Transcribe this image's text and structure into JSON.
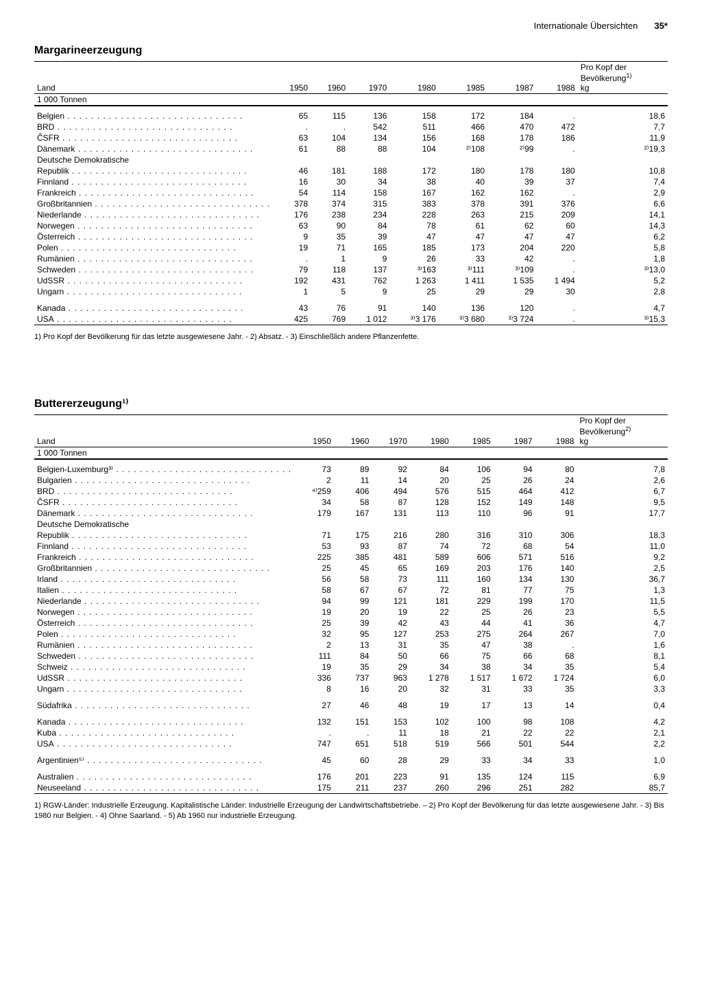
{
  "page_header": {
    "section": "Internationale Übersichten",
    "number": "35*"
  },
  "table1": {
    "title": "Margarineerzeugung",
    "columns": [
      "Land",
      "1950",
      "1960",
      "1970",
      "1980",
      "1985",
      "1987",
      "1988",
      "Pro Kopf der Bevölkerung¹⁾ kg"
    ],
    "unit": "1 000 Tonnen",
    "groups": [
      {
        "rows": [
          {
            "c": "Belgien",
            "v": [
              "65",
              "115",
              "136",
              "158",
              "172",
              "184",
              ".",
              "18,6"
            ]
          },
          {
            "c": "BRD",
            "v": [
              ".",
              ".",
              "542",
              "511",
              "466",
              "470",
              "472",
              "7,7"
            ]
          },
          {
            "c": "ČSFR",
            "v": [
              "63",
              "104",
              "134",
              "156",
              "168",
              "178",
              "186",
              "11,9"
            ]
          },
          {
            "c": "Dänemark",
            "v": [
              "61",
              "88",
              "88",
              "104",
              "²⁾108",
              "²⁾99",
              ".",
              "²⁾19,3"
            ]
          },
          {
            "c": "Deutsche Demokratische",
            "v": [
              "",
              "",
              "",
              "",
              "",
              "",
              "",
              ""
            ],
            "noell": true
          },
          {
            "c": "  Republik",
            "v": [
              "46",
              "181",
              "188",
              "172",
              "180",
              "178",
              "180",
              "10,8"
            ]
          },
          {
            "c": "Finnland",
            "v": [
              "16",
              "30",
              "34",
              "38",
              "40",
              "39",
              "37",
              "7,4"
            ]
          },
          {
            "c": "Frankreich",
            "v": [
              "54",
              "114",
              "158",
              "167",
              "162",
              "162",
              ".",
              "2,9"
            ]
          },
          {
            "c": "Großbritannien",
            "v": [
              "378",
              "374",
              "315",
              "383",
              "378",
              "391",
              "376",
              "6,6"
            ]
          },
          {
            "c": "Niederlande",
            "v": [
              "176",
              "238",
              "234",
              "228",
              "263",
              "215",
              "209",
              "14,1"
            ]
          },
          {
            "c": "Norwegen",
            "v": [
              "63",
              "90",
              "84",
              "78",
              "61",
              "62",
              "60",
              "14,3"
            ]
          },
          {
            "c": "Österreich",
            "v": [
              "9",
              "35",
              "39",
              "47",
              "47",
              "47",
              "47",
              "6,2"
            ]
          },
          {
            "c": "Polen",
            "v": [
              "19",
              "71",
              "165",
              "185",
              "173",
              "204",
              "220",
              "5,8"
            ]
          },
          {
            "c": "Rumänien",
            "v": [
              ".",
              "1",
              "9",
              "26",
              "33",
              "42",
              ".",
              "1,8"
            ]
          },
          {
            "c": "Schweden",
            "v": [
              "79",
              "118",
              "137",
              "³⁾163",
              "³⁾111",
              "³⁾109",
              ".",
              "³⁾13,0"
            ]
          },
          {
            "c": "UdSSR",
            "v": [
              "192",
              "431",
              "762",
              "1 263",
              "1 411",
              "1 535",
              "1 494",
              "5,2"
            ]
          },
          {
            "c": "Ungarn",
            "v": [
              "1",
              "5",
              "9",
              "25",
              "29",
              "29",
              "30",
              "2,8"
            ]
          }
        ]
      },
      {
        "rows": [
          {
            "c": "Kanada",
            "v": [
              "43",
              "76",
              "91",
              "140",
              "136",
              "120",
              ".",
              "4,7"
            ]
          },
          {
            "c": "USA",
            "v": [
              "425",
              "769",
              "1 012",
              "³⁾3 176",
              "³⁾3 680",
              "³⁾3 724",
              ".",
              "³⁾15,3"
            ]
          }
        ]
      }
    ],
    "footnote": "1) Pro Kopf der Bevölkerung für das letzte ausgewiesene Jahr. - 2) Absatz. - 3) Einschließlich andere Pflanzenfette."
  },
  "table2": {
    "title": "Buttererzeugung¹⁾",
    "columns": [
      "Land",
      "1950",
      "1960",
      "1970",
      "1980",
      "1985",
      "1987",
      "1988",
      "Pro Kopf der Bevölkerung²⁾ kg"
    ],
    "unit": "1 000 Tonnen",
    "groups": [
      {
        "rows": [
          {
            "c": "Belgien-Luxemburg³⁾",
            "v": [
              "73",
              "89",
              "92",
              "84",
              "106",
              "94",
              "80",
              "7,8"
            ]
          },
          {
            "c": "Bulgarien",
            "v": [
              "2",
              "11",
              "14",
              "20",
              "25",
              "26",
              "24",
              "2,6"
            ]
          },
          {
            "c": "BRD",
            "v": [
              "⁴⁾259",
              "406",
              "494",
              "576",
              "515",
              "464",
              "412",
              "6,7"
            ]
          },
          {
            "c": "ČSFR",
            "v": [
              "34",
              "58",
              "87",
              "128",
              "152",
              "149",
              "148",
              "9,5"
            ]
          },
          {
            "c": "Dänemark",
            "v": [
              "179",
              "167",
              "131",
              "113",
              "110",
              "96",
              "91",
              "17,7"
            ]
          },
          {
            "c": "Deutsche Demokratische",
            "v": [
              "",
              "",
              "",
              "",
              "",
              "",
              "",
              ""
            ],
            "noell": true
          },
          {
            "c": "  Republik",
            "v": [
              "71",
              "175",
              "216",
              "280",
              "316",
              "310",
              "306",
              "18,3"
            ]
          },
          {
            "c": "Finnland",
            "v": [
              "53",
              "93",
              "87",
              "74",
              "72",
              "68",
              "54",
              "11,0"
            ]
          },
          {
            "c": "Frankreich",
            "v": [
              "225",
              "385",
              "481",
              "589",
              "606",
              "571",
              "516",
              "9,2"
            ]
          },
          {
            "c": "Großbritannien",
            "v": [
              "25",
              "45",
              "65",
              "169",
              "203",
              "176",
              "140",
              "2,5"
            ]
          },
          {
            "c": "Irland",
            "v": [
              "56",
              "58",
              "73",
              "111",
              "160",
              "134",
              "130",
              "36,7"
            ]
          },
          {
            "c": "Italien",
            "v": [
              "58",
              "67",
              "67",
              "72",
              "81",
              "77",
              "75",
              "1,3"
            ]
          },
          {
            "c": "Niederlande",
            "v": [
              "94",
              "99",
              "121",
              "181",
              "229",
              "199",
              "170",
              "11,5"
            ]
          },
          {
            "c": "Norwegen",
            "v": [
              "19",
              "20",
              "19",
              "22",
              "25",
              "26",
              "23",
              "5,5"
            ]
          },
          {
            "c": "Österreich",
            "v": [
              "25",
              "39",
              "42",
              "43",
              "44",
              "41",
              "36",
              "4,7"
            ]
          },
          {
            "c": "Polen",
            "v": [
              "32",
              "95",
              "127",
              "253",
              "275",
              "264",
              "267",
              "7,0"
            ]
          },
          {
            "c": "Rumänien",
            "v": [
              "2",
              "13",
              "31",
              "35",
              "47",
              "38",
              ".",
              "1,6"
            ]
          },
          {
            "c": "Schweden",
            "v": [
              "111",
              "84",
              "50",
              "66",
              "75",
              "66",
              "68",
              "8,1"
            ]
          },
          {
            "c": "Schweiz",
            "v": [
              "19",
              "35",
              "29",
              "34",
              "38",
              "34",
              "35",
              "5,4"
            ]
          },
          {
            "c": "UdSSR",
            "v": [
              "336",
              "737",
              "963",
              "1 278",
              "1 517",
              "1 672",
              "1 724",
              "6,0"
            ]
          },
          {
            "c": "Ungarn",
            "v": [
              "8",
              "16",
              "20",
              "32",
              "31",
              "33",
              "35",
              "3,3"
            ]
          }
        ]
      },
      {
        "rows": [
          {
            "c": "Südafrika",
            "v": [
              "27",
              "46",
              "48",
              "19",
              "17",
              "13",
              "14",
              "0,4"
            ]
          }
        ]
      },
      {
        "rows": [
          {
            "c": "Kanada",
            "v": [
              "132",
              "151",
              "153",
              "102",
              "100",
              "98",
              "108",
              "4,2"
            ]
          },
          {
            "c": "Kuba",
            "v": [
              ".",
              ".",
              "11",
              "18",
              "21",
              "22",
              "22",
              "2,1"
            ]
          },
          {
            "c": "USA",
            "v": [
              "747",
              "651",
              "518",
              "519",
              "566",
              "501",
              "544",
              "2,2"
            ]
          }
        ]
      },
      {
        "rows": [
          {
            "c": "Argentinien⁵⁾",
            "v": [
              "45",
              "60",
              "28",
              "29",
              "33",
              "34",
              "33",
              "1,0"
            ]
          }
        ]
      },
      {
        "rows": [
          {
            "c": "Australien",
            "v": [
              "176",
              "201",
              "223",
              "91",
              "135",
              "124",
              "115",
              "6,9"
            ]
          },
          {
            "c": "Neuseeland",
            "v": [
              "175",
              "211",
              "237",
              "260",
              "296",
              "251",
              "282",
              "85,7"
            ]
          }
        ]
      }
    ],
    "footnote": "1) RGW-Länder: Industrielle Erzeugung. Kapitalistische Länder: Industrielle Erzeugung der Landwirtschaftsbetriebe. – 2) Pro Kopf der Bevölkerung für das letzte ausgewiesene Jahr. - 3) Bis 1980 nur Belgien. - 4) Ohne Saarland. - 5) Ab 1960 nur industrielle Erzeugung."
  }
}
